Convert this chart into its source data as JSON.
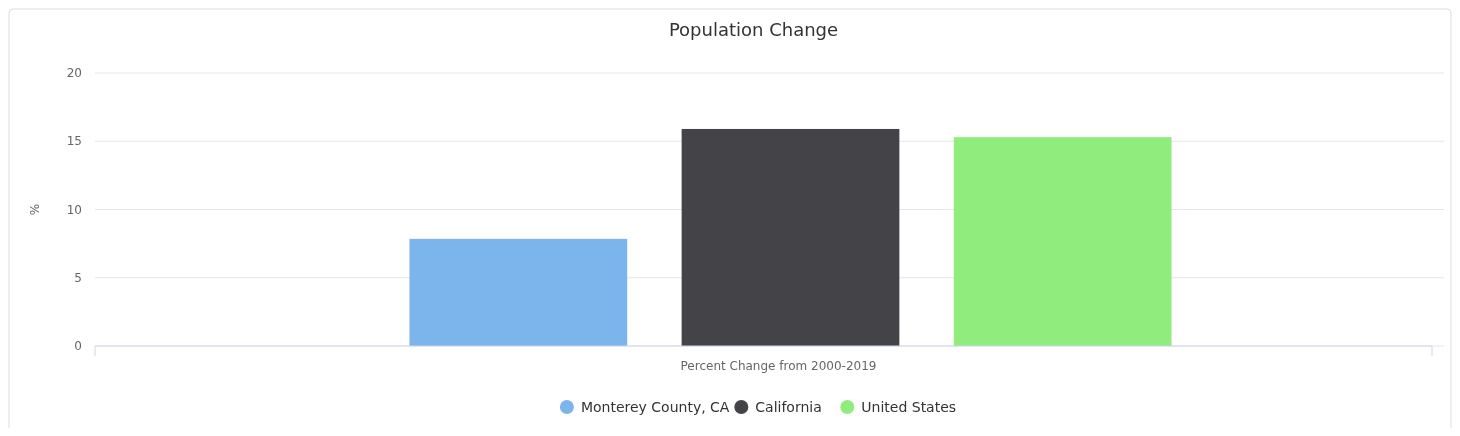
{
  "chart_data": {
    "type": "bar",
    "title": "Population Change",
    "ylabel": "%",
    "categories": [
      "Percent Change from 2000-2019"
    ],
    "series": [
      {
        "name": "Monterey County, CA",
        "color": "#7cb5ec",
        "values": [
          7.85
        ]
      },
      {
        "name": "California",
        "color": "#434348",
        "values": [
          15.9
        ]
      },
      {
        "name": "United States",
        "color": "#90ed7d",
        "values": [
          15.3
        ]
      }
    ],
    "ylim": [
      0,
      20
    ],
    "yticks": [
      0,
      5,
      10,
      15,
      20
    ],
    "grid": "y",
    "legend": "bottom"
  }
}
